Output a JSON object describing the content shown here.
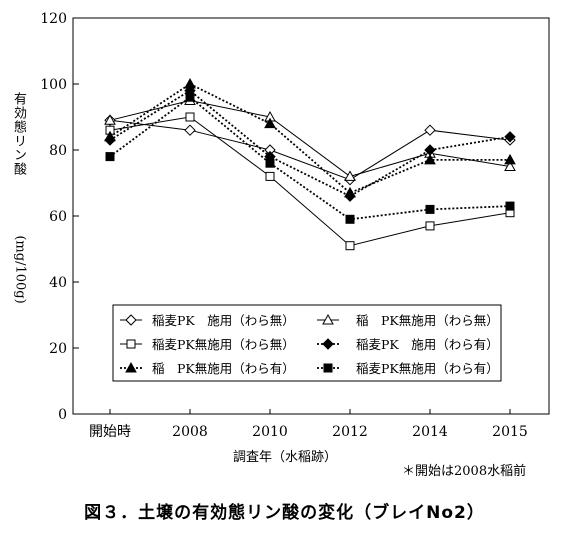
{
  "chart_data": {
    "type": "line",
    "categories": [
      "開始時",
      "2008",
      "2010",
      "2012",
      "2014",
      "2015"
    ],
    "ylabel_main": "有効態リン酸",
    "ylabel_unit": "(mg/100g)",
    "xlabel": "調査年（水稲跡）",
    "ylim": [
      0,
      120
    ],
    "yticks": [
      0,
      20,
      40,
      60,
      80,
      100,
      120
    ],
    "grid": false,
    "legend_placement": "lower-center inside plot",
    "series": [
      {
        "name": "稲麦PK　施用（わら無）",
        "marker": "diamond-open",
        "line": "solid",
        "values": [
          89,
          86,
          80,
          71,
          86,
          83
        ]
      },
      {
        "name": "稲　PK無施用（わら無）",
        "marker": "triangle-open",
        "line": "solid",
        "values": [
          89,
          95,
          90,
          72,
          79,
          75
        ]
      },
      {
        "name": "稲麦PK無施用（わら無）",
        "marker": "square-open",
        "line": "solid",
        "values": [
          86,
          90,
          72,
          51,
          57,
          61
        ]
      },
      {
        "name": "稲麦PK　施用（わら有）",
        "marker": "diamond-filled",
        "line": "dotted",
        "values": [
          83,
          98,
          78,
          66,
          80,
          84
        ]
      },
      {
        "name": "稲　PK無施用（わら有）",
        "marker": "triangle-filled",
        "line": "dotted",
        "values": [
          84,
          100,
          88,
          67,
          77,
          77
        ]
      },
      {
        "name": "稲麦PK無施用（わら有）",
        "marker": "square-filled",
        "line": "dotted",
        "values": [
          78,
          96,
          76,
          59,
          62,
          63
        ]
      }
    ]
  },
  "note": "＊開始は2008水稲前",
  "caption": "図３．土壌の有効態リン酸の変化（ブレイNo2）"
}
